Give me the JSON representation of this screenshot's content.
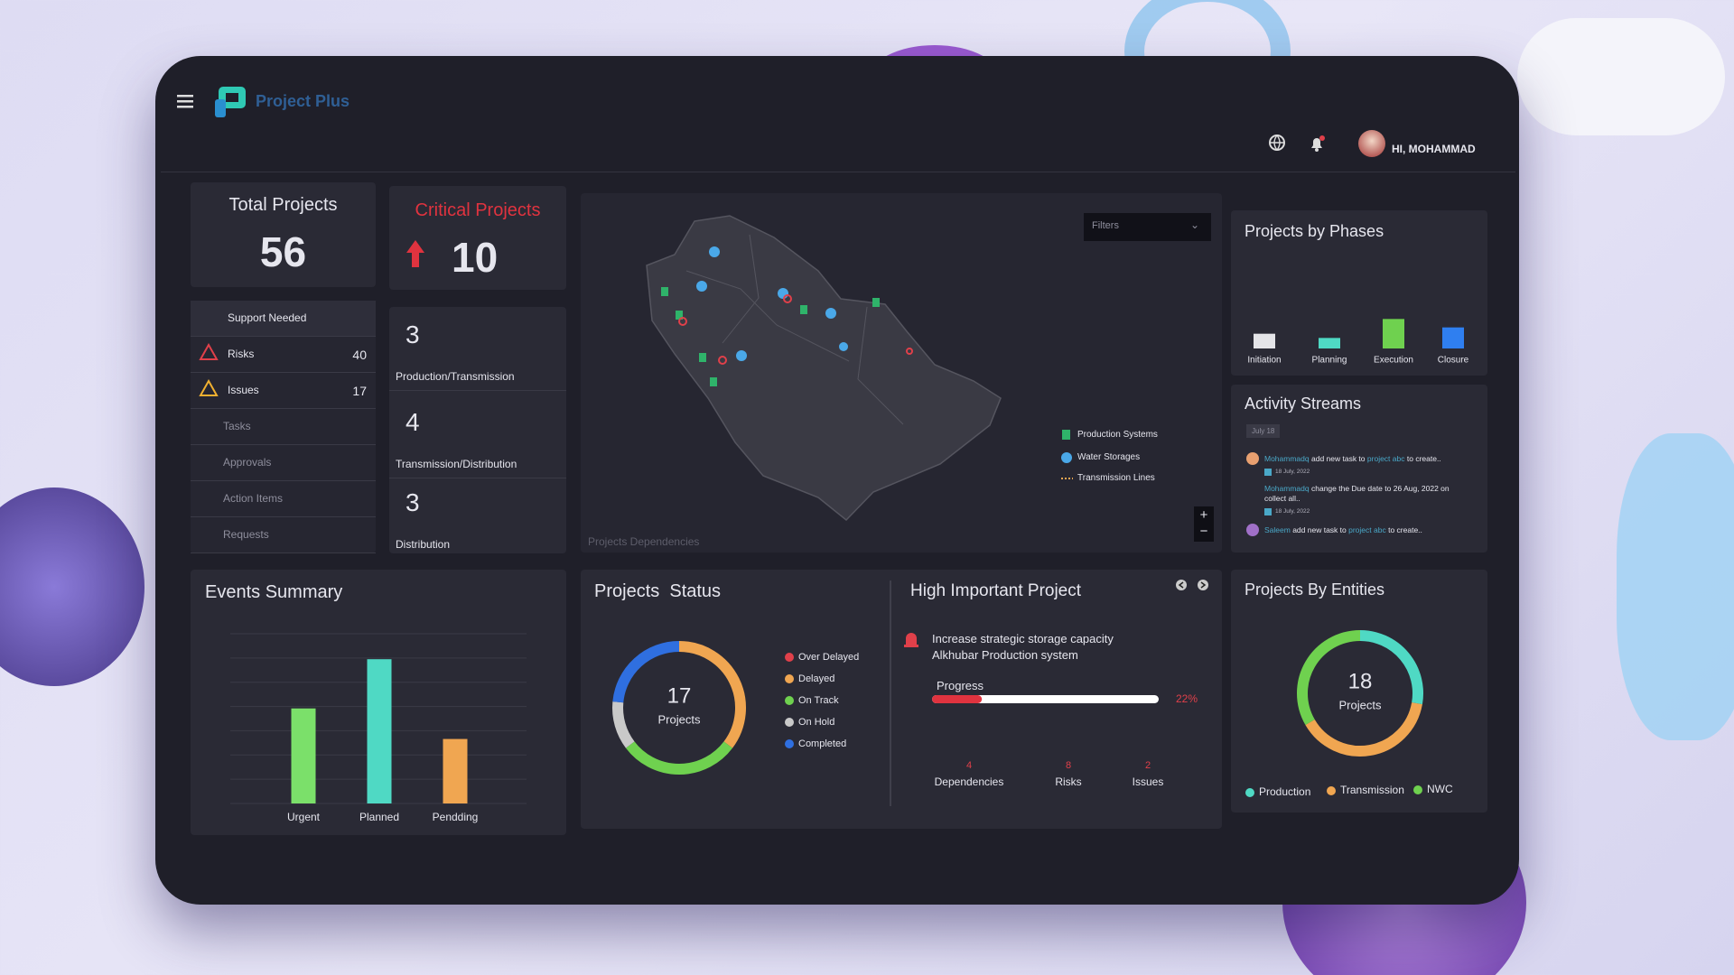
{
  "header": {
    "brand": "Project Plus",
    "greeting": "HI, MOHAMMAD"
  },
  "total_projects": {
    "title": "Total Projects",
    "value": 56
  },
  "critical_projects": {
    "title": "Critical Projects",
    "value": 10
  },
  "side_menu": [
    {
      "label": "Support Needed"
    },
    {
      "label": "Risks",
      "count": 40
    },
    {
      "label": "Issues",
      "count": 17
    },
    {
      "label": "Tasks"
    },
    {
      "label": "Approvals"
    },
    {
      "label": "Action Items"
    },
    {
      "label": "Requests"
    }
  ],
  "critical_breakdown": [
    {
      "value": 3,
      "label": "Production/Transmission"
    },
    {
      "value": 4,
      "label": "Transmission/Distribution"
    },
    {
      "value": 3,
      "label": "Distribution"
    }
  ],
  "map": {
    "filter": "Filters",
    "legend": [
      "Production Systems",
      "Water Storages",
      "Transmission Lines"
    ],
    "zoom_in": "+",
    "zoom_out": "−",
    "caption": "Projects Dependencies"
  },
  "projects_by_phases": {
    "type": "bar",
    "title": "Projects by Phases",
    "categories": [
      "Initiation",
      "Planning",
      "Execution",
      "Closure"
    ],
    "values": [
      14,
      10,
      28,
      20
    ],
    "colors": [
      "#e4e4e8",
      "#4fd9c4",
      "#6fd14f",
      "#2f7ff0"
    ],
    "ylim": [
      0,
      60
    ]
  },
  "activity_streams": {
    "title": "Activity Streams",
    "date_chip": "July 18",
    "items": [
      {
        "user": "Mohammadq",
        "text": "add new task to",
        "link": "project abc",
        "rest": "to create..",
        "date": "18 July, 2022"
      },
      {
        "user": "Mohammadq",
        "text": "change the Due date to 26 Aug, 2022 on collect all..",
        "date": "18 July, 2022"
      },
      {
        "user": "Saleem",
        "text": "add new task to",
        "link": "project abc",
        "rest": "to create.."
      }
    ]
  },
  "events_summary": {
    "type": "bar",
    "title": "Events Summary",
    "categories": [
      "Urgent",
      "Planned",
      "Pendding"
    ],
    "values": [
      56,
      85,
      38
    ],
    "colors": [
      "#7be06a",
      "#4fd9c4",
      "#f0a651"
    ],
    "ylim": [
      0,
      100
    ],
    "grid": true
  },
  "projects_status": {
    "type": "donut",
    "title": "Projects  Status",
    "center_value": 17,
    "center_label": "Projects",
    "categories": [
      "Over Delayed",
      "Delayed",
      "On Track",
      "On Hold",
      "Completed"
    ],
    "values": [
      0,
      6,
      5,
      2,
      4
    ],
    "colors": [
      "#e0404a",
      "#f0a651",
      "#6fd14f",
      "#c9c9c9",
      "#2f6fe0"
    ]
  },
  "high_important_project": {
    "title": "High Important Project",
    "name": "Increase strategic storage capacity",
    "system": "Alkhubar Production system",
    "progress_label": "Progress",
    "progress": {
      "value": 22,
      "value_label": "22%"
    },
    "stats": [
      {
        "value": 4,
        "label": "Dependencies"
      },
      {
        "value": 8,
        "label": "Risks"
      },
      {
        "value": 2,
        "label": "Issues"
      }
    ]
  },
  "projects_by_entities": {
    "type": "donut",
    "title": "Projects By Entities",
    "center_value": 18,
    "center_label": "Projects",
    "categories": [
      "Production",
      "Transmission",
      "NWC"
    ],
    "values": [
      5,
      7,
      6
    ],
    "colors": [
      "#4fd9c4",
      "#f0a651",
      "#6fd14f"
    ]
  }
}
